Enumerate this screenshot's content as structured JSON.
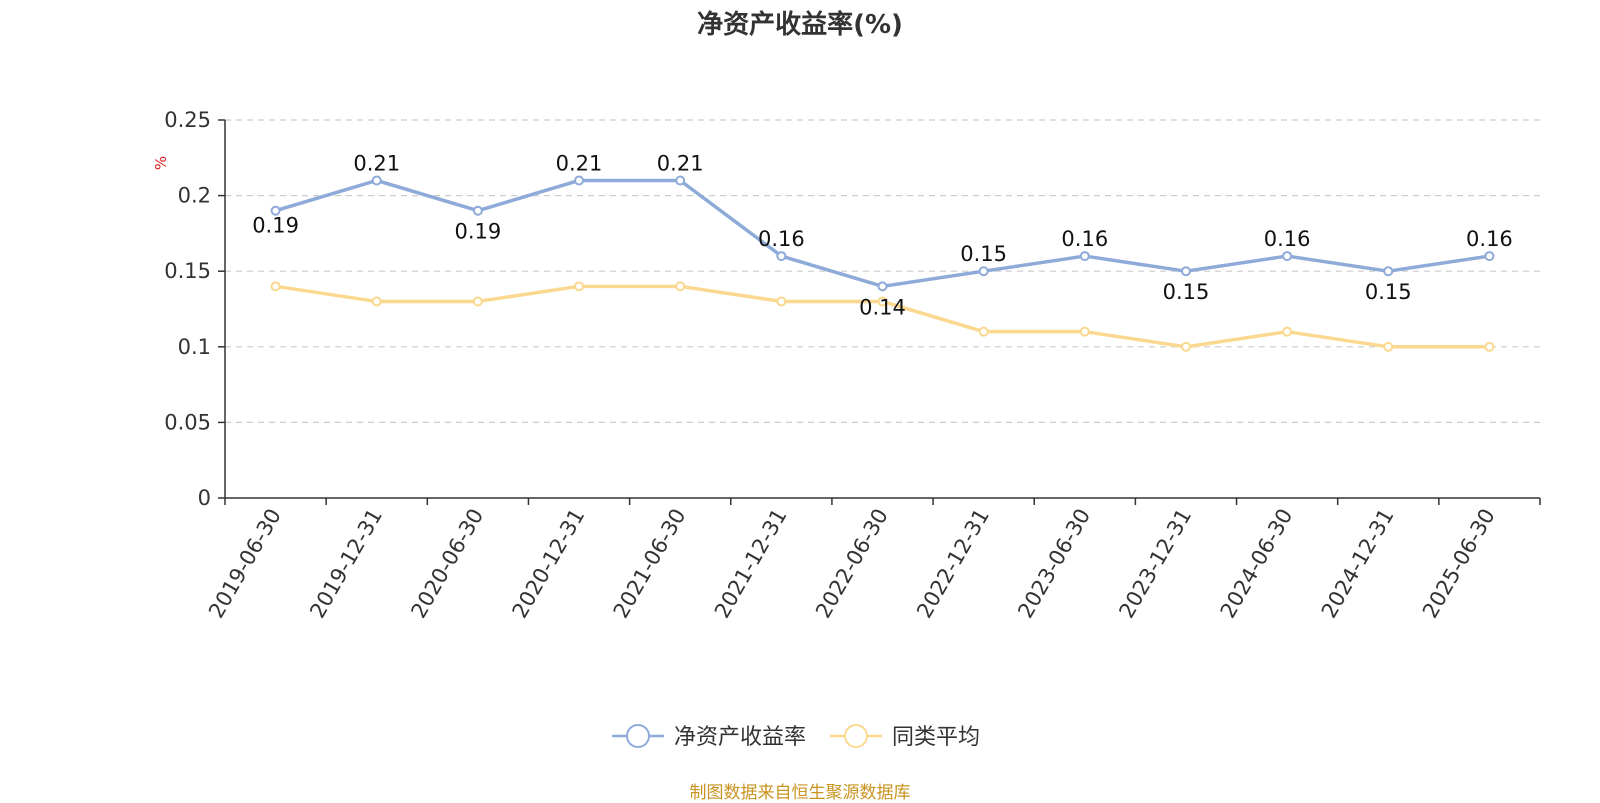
{
  "title": "净资产收益率(%)",
  "footer": "制图数据来自恒生聚源数据库",
  "chart_data": {
    "type": "line",
    "title": "净资产收益率(%)",
    "ylabel": "%",
    "ylim": [
      0,
      0.25
    ],
    "yticks": [
      "0",
      "0.05",
      "0.1",
      "0.15",
      "0.2",
      "0.25"
    ],
    "grid": true,
    "legend_position": "bottom-center",
    "categories": [
      "2019-06-30",
      "2019-12-31",
      "2020-06-30",
      "2020-12-31",
      "2021-06-30",
      "2021-12-31",
      "2022-06-30",
      "2022-12-31",
      "2023-06-30",
      "2023-12-31",
      "2024-06-30",
      "2024-12-31",
      "2025-06-30"
    ],
    "series": [
      {
        "name": "净资产收益率",
        "color": "#8eaad8",
        "values": [
          0.19,
          0.21,
          0.19,
          0.21,
          0.21,
          0.16,
          0.14,
          0.15,
          0.16,
          0.15,
          0.16,
          0.15,
          0.16
        ],
        "labels": [
          "0.19",
          "0.21",
          "0.19",
          "0.21",
          "0.21",
          "0.16",
          "0.14",
          "0.15",
          "0.16",
          "0.15",
          "0.16",
          "0.15",
          "0.16"
        ]
      },
      {
        "name": "同类平均",
        "color": "#fbd88f",
        "values": [
          0.14,
          0.13,
          0.13,
          0.14,
          0.14,
          0.13,
          0.13,
          0.11,
          0.11,
          0.1,
          0.11,
          0.1,
          0.1
        ]
      }
    ]
  }
}
